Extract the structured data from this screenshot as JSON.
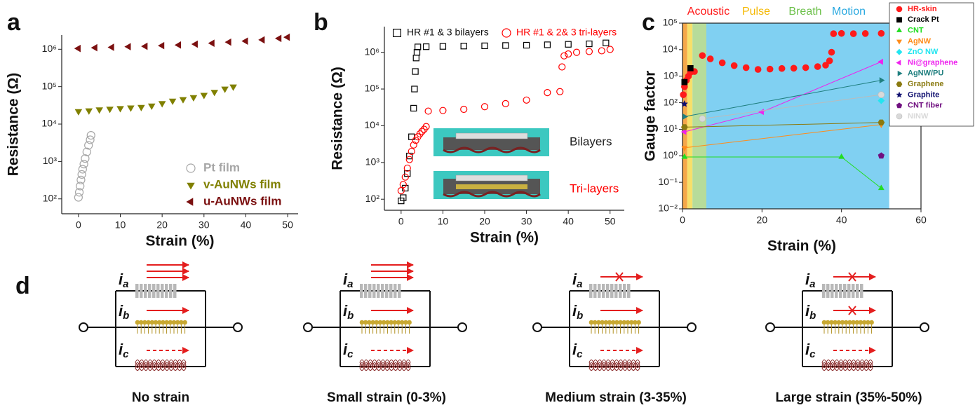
{
  "chart_data": [
    {
      "type": "scatter",
      "label": "a",
      "xlabel": "Strain (%)",
      "ylabel": "Resistance (Ω)",
      "log_y": true,
      "xlim": [
        -4,
        52.5
      ],
      "xticks": [
        0,
        10,
        20,
        30,
        40,
        50
      ],
      "ylim": [
        40,
        2400000
      ],
      "yticks": [
        {
          "value": 100,
          "label": "10²"
        },
        {
          "value": 1000,
          "label": "10³"
        },
        {
          "value": 10000,
          "label": "10⁴"
        },
        {
          "value": 100000,
          "label": "10⁵"
        },
        {
          "value": 1000000,
          "label": "10⁶"
        }
      ],
      "legend": "lower right",
      "series": [
        {
          "name": "Pt film",
          "color": "#a6a6a6",
          "marker": "circle",
          "filled": false,
          "x": [
            0,
            0.2,
            0.4,
            0.6,
            0.8,
            1.0,
            1.3,
            1.6,
            2.0,
            2.4,
            2.8,
            3.0
          ],
          "values": [
            110,
            150,
            220,
            320,
            450,
            620,
            850,
            1200,
            1800,
            2700,
            3800,
            5000
          ]
        },
        {
          "name": "v-AuNWs film",
          "color": "#808000",
          "marker": "triangle-down",
          "filled": true,
          "x": [
            0,
            2.5,
            5,
            7.5,
            10,
            12.5,
            15,
            17.5,
            20,
            22.5,
            25,
            27.5,
            30,
            32.5,
            35,
            37
          ],
          "values": [
            22000,
            23000,
            24500,
            25500,
            26500,
            27500,
            28500,
            31000,
            36000,
            42000,
            46000,
            52000,
            60000,
            72000,
            88000,
            100000
          ]
        },
        {
          "name": "u-AuNWs film",
          "color": "#7b1010",
          "marker": "triangle-left",
          "filled": true,
          "x": [
            0,
            4,
            8,
            12,
            16,
            20,
            24,
            28,
            32,
            36,
            40,
            44,
            48,
            50
          ],
          "values": [
            1050000,
            1100000,
            1130000,
            1170000,
            1200000,
            1250000,
            1300000,
            1370000,
            1450000,
            1550000,
            1650000,
            1780000,
            1950000,
            2100000
          ]
        }
      ]
    },
    {
      "type": "scatter",
      "label": "b",
      "xlabel": "Strain (%)",
      "ylabel": "Resistance (Ω)",
      "log_y": true,
      "xlim": [
        -4,
        53.4
      ],
      "xticks": [
        0,
        10,
        20,
        30,
        40,
        50
      ],
      "ylim": [
        50,
        5000000
      ],
      "yticks": [
        {
          "value": 100,
          "label": "10²"
        },
        {
          "value": 1000,
          "label": "10³"
        },
        {
          "value": 10000,
          "label": "10⁴"
        },
        {
          "value": 100000,
          "label": "10⁵"
        },
        {
          "value": 1000000,
          "label": "10⁶"
        }
      ],
      "legend": "upper",
      "annotations": [
        {
          "text": "Bilayers",
          "color": "#222222"
        },
        {
          "text": "Tri-layers",
          "color": "#ff0000"
        }
      ],
      "series": [
        {
          "name": "HR #1 & 3 bilayers",
          "color": "#000000",
          "marker": "square",
          "filled": false,
          "x": [
            0,
            0.5,
            1,
            1.5,
            2,
            2.5,
            3,
            3.2,
            3.4,
            3.6,
            3.8,
            4,
            6,
            10,
            15,
            20,
            25,
            30,
            35,
            40,
            45,
            49
          ],
          "values": [
            90,
            110,
            200,
            500,
            1500,
            5000,
            30000,
            100000,
            300000,
            700000,
            1000000,
            1400000,
            1420000,
            1450000,
            1480000,
            1500000,
            1530000,
            1560000,
            1600000,
            1650000,
            1700000,
            1800000
          ]
        },
        {
          "name": "HR #1 & 2& 3 tri-layers",
          "color": "#ff0000",
          "marker": "circle",
          "filled": false,
          "x": [
            0,
            0.5,
            1,
            1.5,
            2,
            2.5,
            3,
            3.5,
            4,
            4.5,
            5,
            5.5,
            6,
            6.5,
            10,
            15,
            20,
            25,
            30,
            35,
            38,
            38.5,
            39,
            40,
            42,
            45,
            48,
            50
          ],
          "values": [
            170,
            250,
            400,
            700,
            1200,
            2000,
            3000,
            4000,
            5000,
            6000,
            7000,
            8000,
            9500,
            25000,
            26000,
            28000,
            33000,
            40000,
            50000,
            80000,
            85000,
            400000,
            800000,
            900000,
            1000000,
            1050000,
            1100000,
            1200000
          ]
        }
      ]
    },
    {
      "type": "scatter",
      "label": "c",
      "xlabel": "Strain (%)",
      "ylabel": "Gauge factor",
      "log_y": true,
      "xlim": [
        0,
        60
      ],
      "xticks": [
        0,
        20,
        40,
        60
      ],
      "ylim": [
        0.01,
        100000
      ],
      "yticks": [
        {
          "value": 0.01,
          "label": "10⁻²"
        },
        {
          "value": 0.1,
          "label": "10⁻¹"
        },
        {
          "value": 1,
          "label": "10⁰"
        },
        {
          "value": 10,
          "label": "10¹"
        },
        {
          "value": 100,
          "label": "10²"
        },
        {
          "value": 1000,
          "label": "10³"
        },
        {
          "value": 10000,
          "label": "10⁴"
        },
        {
          "value": 100000,
          "label": "10⁵"
        }
      ],
      "legend": "upper right",
      "regions": [
        {
          "name": "Acoustic",
          "x": [
            0,
            1.2
          ],
          "color": "#f5a84a",
          "label_color": "#ff1a1a"
        },
        {
          "name": "Pulse",
          "x": [
            1.2,
            2.5
          ],
          "color": "#f7e06a",
          "label_color": "#f5b800"
        },
        {
          "name": "Breath",
          "x": [
            2.5,
            6
          ],
          "color": "#b7dc9a",
          "label_color": "#6cc04a"
        },
        {
          "name": "Motion",
          "x": [
            6,
            52
          ],
          "color": "#80d0f2",
          "label_color": "#2aa9e0"
        }
      ],
      "series": [
        {
          "name": "HR-skin",
          "color": "#ff1a1a",
          "marker": "circle",
          "filled": true,
          "x": [
            0.2,
            0.5,
            1,
            1.5,
            2,
            3,
            5,
            7,
            10,
            13,
            16,
            19,
            22,
            25,
            28,
            31,
            34,
            36,
            37,
            37.5,
            38,
            40,
            43,
            46,
            50
          ],
          "values": [
            200,
            400,
            700,
            1000,
            1400,
            1500,
            6000,
            4500,
            3200,
            2500,
            2100,
            1800,
            1850,
            1950,
            2000,
            2100,
            2300,
            2600,
            3800,
            8000,
            40000,
            41000,
            40000,
            40500,
            41000
          ]
        },
        {
          "name": "Crack Pt",
          "color": "#000000",
          "marker": "square",
          "filled": true,
          "x": [
            0.5,
            2
          ],
          "values": [
            600,
            2000
          ]
        },
        {
          "name": "CNT",
          "color": "#22dd22",
          "marker": "triangle-up",
          "filled": true,
          "line": true,
          "x": [
            0.5,
            40,
            50
          ],
          "values": [
            0.9,
            0.9,
            0.06
          ]
        },
        {
          "name": "AgNW",
          "color": "#ff8c1a",
          "marker": "triangle-down",
          "filled": true,
          "line": true,
          "x": [
            0.5,
            50
          ],
          "values": [
            2,
            15
          ]
        },
        {
          "name": "ZnO NW",
          "color": "#22e5f0",
          "marker": "diamond",
          "filled": true,
          "x": [
            50
          ],
          "values": [
            120
          ]
        },
        {
          "name": "Ni@graphene",
          "color": "#ee22ee",
          "marker": "triangle-left",
          "filled": true,
          "line": true,
          "x": [
            0.5,
            20,
            50
          ],
          "values": [
            8,
            45,
            3500
          ]
        },
        {
          "name": "AgNW/PU",
          "color": "#1f7f7f",
          "marker": "triangle-right",
          "filled": true,
          "line": true,
          "x": [
            0.5,
            50
          ],
          "values": [
            30,
            700
          ]
        },
        {
          "name": "Graphene",
          "color": "#8a7a10",
          "marker": "hexagon",
          "filled": true,
          "line": true,
          "x": [
            0.5,
            50
          ],
          "values": [
            12,
            18
          ]
        },
        {
          "name": "Graphite",
          "color": "#101070",
          "marker": "star",
          "filled": true,
          "x": [
            0.5
          ],
          "values": [
            90
          ]
        },
        {
          "name": "CNT fiber",
          "color": "#701080",
          "marker": "pentagon",
          "filled": true,
          "x": [
            50
          ],
          "values": [
            1
          ]
        },
        {
          "name": "NiNW",
          "color": "#d9d9d9",
          "marker": "circle",
          "filled": true,
          "line": true,
          "x": [
            5,
            50
          ],
          "values": [
            25,
            200
          ]
        }
      ]
    }
  ],
  "diagram": {
    "label": "d",
    "current_symbol": "i",
    "current_subscripts": [
      "a",
      "b",
      "c"
    ],
    "captions": [
      "No strain",
      "Small strain (0-3%)",
      "Medium strain (3-35%)",
      "Large strain (35%-50%)"
    ]
  }
}
